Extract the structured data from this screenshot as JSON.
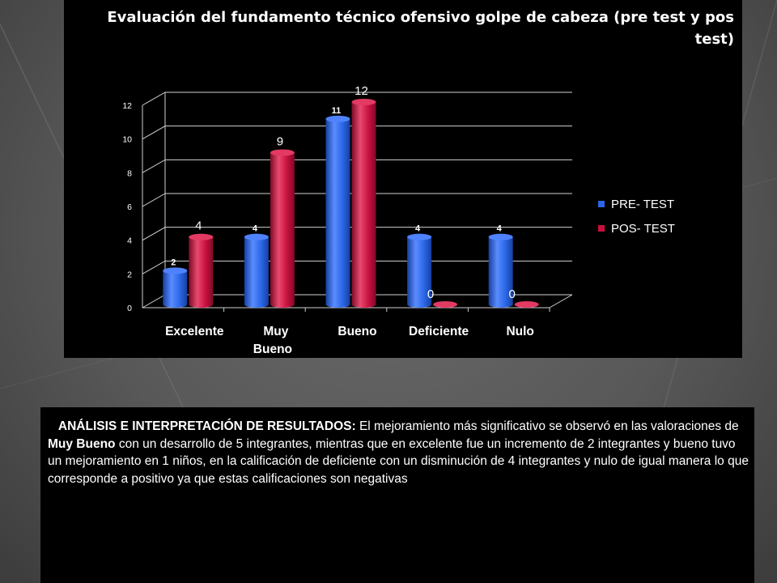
{
  "title": "Evaluación del fundamento técnico ofensivo golpe de cabeza  (pre test y pos test)",
  "analysis": {
    "heading": "ANÁLISIS E INTERPRETACIÓN DE RESULTADOS:",
    "text_1": " El mejoramiento más significativo se observó en las valoraciones de ",
    "highlight": "Muy  Bueno",
    "text_2": " con un desarrollo de 5 integrantes, mientras que en excelente fue un incremento de 2 integrantes y bueno tuvo un mejoramiento en 1 niños, en la calificación de  deficiente con un disminución de 4 integrantes y nulo de igual manera lo que corresponde a positivo ya que estas calificaciones son negativas"
  },
  "colors": {
    "pre": "#2a66e6",
    "pos": "#c8103e",
    "panel": "#000000",
    "text": "#ffffff"
  },
  "chart_data": {
    "type": "bar",
    "categories": [
      "Excelente",
      "Muy Bueno",
      "Bueno",
      "Deficiente",
      "Nulo"
    ],
    "series": [
      {
        "name": "PRE- TEST",
        "values": [
          2,
          4,
          11,
          4,
          4
        ]
      },
      {
        "name": "POS- TEST",
        "values": [
          4,
          9,
          12,
          0,
          0
        ]
      }
    ],
    "title": "",
    "xlabel": "",
    "ylabel": "",
    "ylim": [
      0,
      12
    ],
    "yticks": [
      "0",
      "2",
      "4",
      "6",
      "8",
      "10",
      "12"
    ],
    "grid": true,
    "legend": "right",
    "style": "3d-cylinder"
  }
}
